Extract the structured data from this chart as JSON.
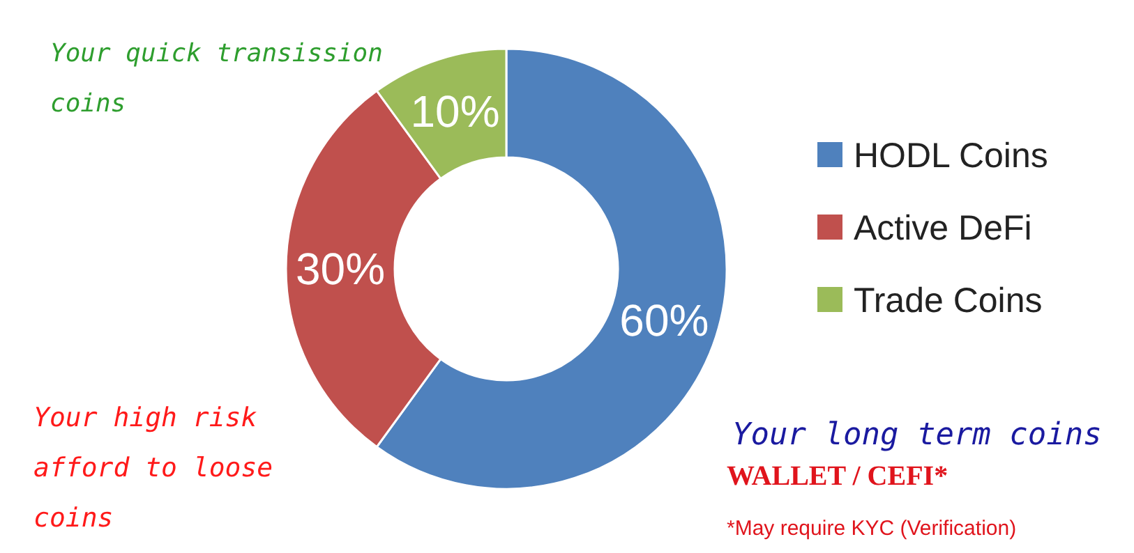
{
  "chart_data": {
    "type": "donut",
    "categories": [
      "HODL Coins",
      "Active DeFi",
      "Trade Coins"
    ],
    "values": [
      60,
      30,
      10
    ],
    "colors": [
      "#4f81bd",
      "#c0504d",
      "#9bbb59"
    ],
    "data_labels": true,
    "value_labels": [
      "60%",
      "30%",
      "10%"
    ],
    "legend": "right",
    "annotations": [
      "Your quick transission coins",
      "Your high risk afford to loose coins",
      "Your long term coins",
      "WALLET / CEFI*",
      "*May require KYC (Verification)"
    ]
  }
}
